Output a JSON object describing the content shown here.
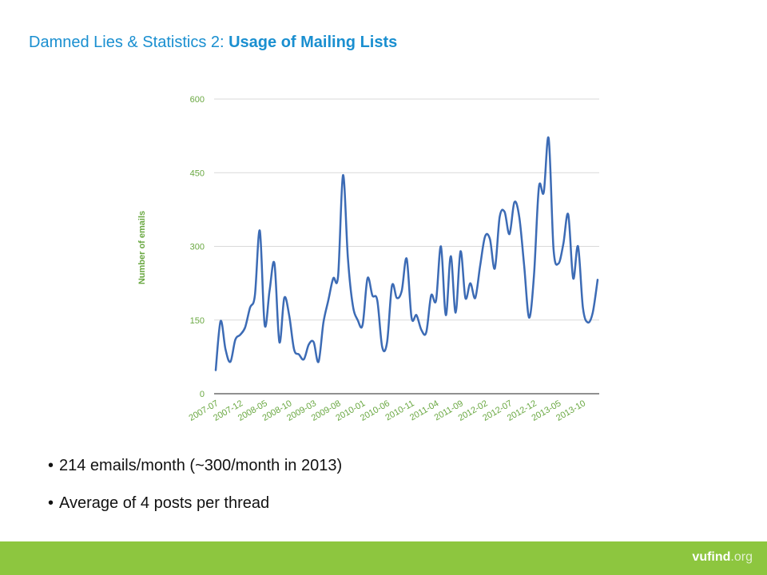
{
  "slide": {
    "title_prefix": "Damned Lies & Statistics 2: ",
    "title_bold": "Usage of Mailing Lists",
    "bullets": [
      "214 emails/month (~300/month in 2013)",
      "Average of 4 posts per thread"
    ],
    "logo_name": "vufind",
    "logo_tld": ".org"
  },
  "colors": {
    "title": "#1a8fd0",
    "line": "#3c6bb5",
    "axis_text": "#6aa842",
    "footer": "#8dc63f"
  },
  "chart_data": {
    "type": "line",
    "title": "",
    "xlabel": "",
    "ylabel": "Number of emails",
    "ylim": [
      0,
      600
    ],
    "yticks": [
      0,
      150,
      300,
      450,
      600
    ],
    "grid": true,
    "xtick_labels": [
      "2007-07",
      "2007-12",
      "2008-05",
      "2008-10",
      "2009-03",
      "2009-08",
      "2010-01",
      "2010-06",
      "2010-11",
      "2011-04",
      "2011-09",
      "2012-02",
      "2012-07",
      "2012-12",
      "2013-05",
      "2013-10"
    ],
    "series": [
      {
        "name": "",
        "x": [
          "2007-07",
          "2007-08",
          "2007-09",
          "2007-10",
          "2007-11",
          "2007-12",
          "2008-01",
          "2008-02",
          "2008-03",
          "2008-04",
          "2008-05",
          "2008-06",
          "2008-07",
          "2008-08",
          "2008-09",
          "2008-10",
          "2008-11",
          "2008-12",
          "2009-01",
          "2009-02",
          "2009-03",
          "2009-04",
          "2009-05",
          "2009-06",
          "2009-07",
          "2009-08",
          "2009-09",
          "2009-10",
          "2009-11",
          "2009-12",
          "2010-01",
          "2010-02",
          "2010-03",
          "2010-04",
          "2010-05",
          "2010-06",
          "2010-07",
          "2010-08",
          "2010-09",
          "2010-10",
          "2010-11",
          "2010-12",
          "2011-01",
          "2011-02",
          "2011-03",
          "2011-04",
          "2011-05",
          "2011-06",
          "2011-07",
          "2011-08",
          "2011-09",
          "2011-10",
          "2011-11",
          "2011-12",
          "2012-01",
          "2012-02",
          "2012-03",
          "2012-04",
          "2012-05",
          "2012-06",
          "2012-07",
          "2012-08",
          "2012-09",
          "2012-10",
          "2012-11",
          "2012-12",
          "2013-01",
          "2013-02",
          "2013-03",
          "2013-04",
          "2013-05",
          "2013-06",
          "2013-07",
          "2013-08",
          "2013-09",
          "2013-10",
          "2013-11",
          "2013-12",
          "2014-01"
        ],
        "values": [
          48,
          148,
          90,
          65,
          110,
          120,
          135,
          175,
          200,
          332,
          140,
          210,
          265,
          105,
          195,
          160,
          90,
          80,
          70,
          100,
          105,
          65,
          145,
          190,
          235,
          240,
          445,
          275,
          180,
          150,
          140,
          235,
          200,
          190,
          95,
          105,
          220,
          195,
          210,
          275,
          155,
          160,
          130,
          125,
          200,
          190,
          300,
          160,
          280,
          165,
          290,
          195,
          225,
          195,
          260,
          320,
          315,
          255,
          360,
          370,
          325,
          390,
          360,
          260,
          155,
          240,
          420,
          410,
          520,
          295,
          265,
          305,
          365,
          235,
          300,
          175,
          145,
          165,
          232
        ]
      }
    ]
  }
}
